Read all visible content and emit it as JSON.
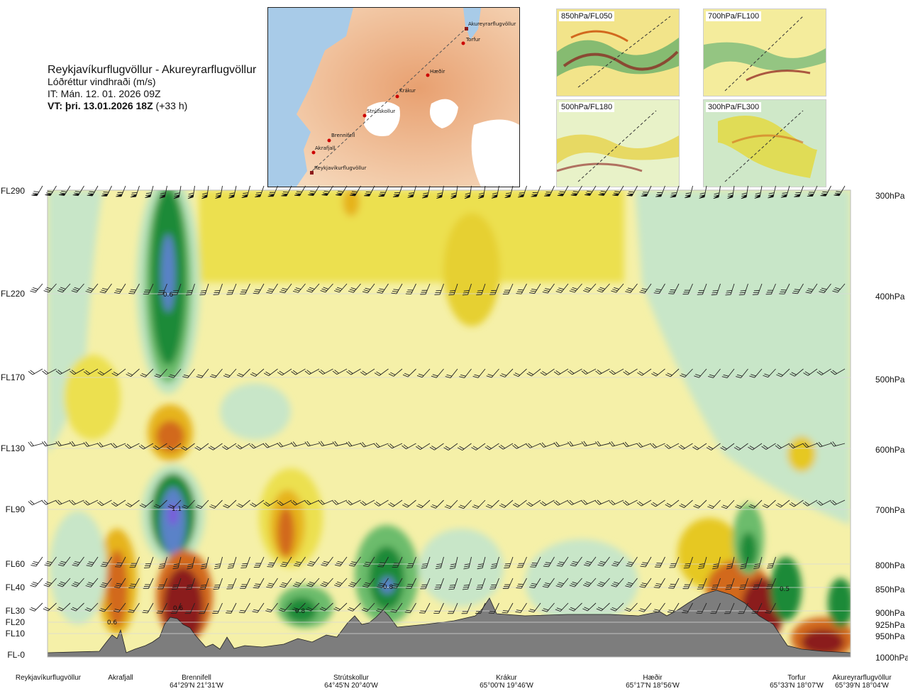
{
  "header": {
    "route": "Reykjavíkurflugvöllur - Akureyrarflugvöllur",
    "parameter": "Lóðréttur vindhraði (m/s)",
    "issue_time": "IT: Mán. 12. 01. 2026 09Z",
    "valid_time_bold": "VT: þri. 13.01.2026 18Z",
    "lead_time": "(+33 h)"
  },
  "map": {
    "points": [
      "Akureyrarflugvöllur",
      "Torfur",
      "Hæðir",
      "Krákur",
      "Strútskollur",
      "Brennifell",
      "Akrafjall",
      "Reykjavíkurflugvöllur"
    ]
  },
  "mini_maps": [
    {
      "label": "850hPa/FL050"
    },
    {
      "label": "700hPa/FL100"
    },
    {
      "label": "500hPa/FL180"
    },
    {
      "label": "300hPa/FL300"
    }
  ],
  "colors": {
    "downdraft_strong": "#8b1a1a",
    "downdraft_mid": "#d2691e",
    "downdraft_weak": "#e6c820",
    "neutral": "#f5f0a8",
    "updraft_weak": "#c8e6c8",
    "updraft_mid": "#3ca03c",
    "updraft_strong": "#0a7a2a",
    "updraft_max": "#5a82c8",
    "terrain": "#7d7d7d"
  },
  "chart_data": {
    "type": "heatmap",
    "title": "Lóðréttur vindhraði (m/s)",
    "left_axis_levels": [
      "FL290",
      "FL220",
      "FL170",
      "FL130",
      "FL90",
      "FL60",
      "FL40",
      "FL30",
      "FL20",
      "FL10",
      "FL-0"
    ],
    "right_axis_levels": [
      "300hPa",
      "400hPa",
      "500hPa",
      "600hPa",
      "700hPa",
      "800hPa",
      "850hPa",
      "900hPa",
      "925hPa",
      "950hPa",
      "1000hPa"
    ],
    "x_locations": [
      {
        "name": "Reykjavíkurflugvöllur",
        "coord": ""
      },
      {
        "name": "Akrafjall",
        "coord": ""
      },
      {
        "name": "Brennifell",
        "coord": "64°29'N 21°31'W"
      },
      {
        "name": "Strútskollur",
        "coord": "64°45'N 20°40'W"
      },
      {
        "name": "Krákur",
        "coord": "65°00'N 19°46'W"
      },
      {
        "name": "Hæðir",
        "coord": "65°17'N 18°56'W"
      },
      {
        "name": "Torfur",
        "coord": "65°33'N 18°07'W"
      },
      {
        "name": "Akureyrarflugvöllur",
        "coord": "65°39'N 18°04'W"
      }
    ],
    "value_labels": [
      "0.6",
      "0.6",
      "1.1",
      "0.8",
      "0.8",
      "0.5",
      "0.6"
    ]
  }
}
